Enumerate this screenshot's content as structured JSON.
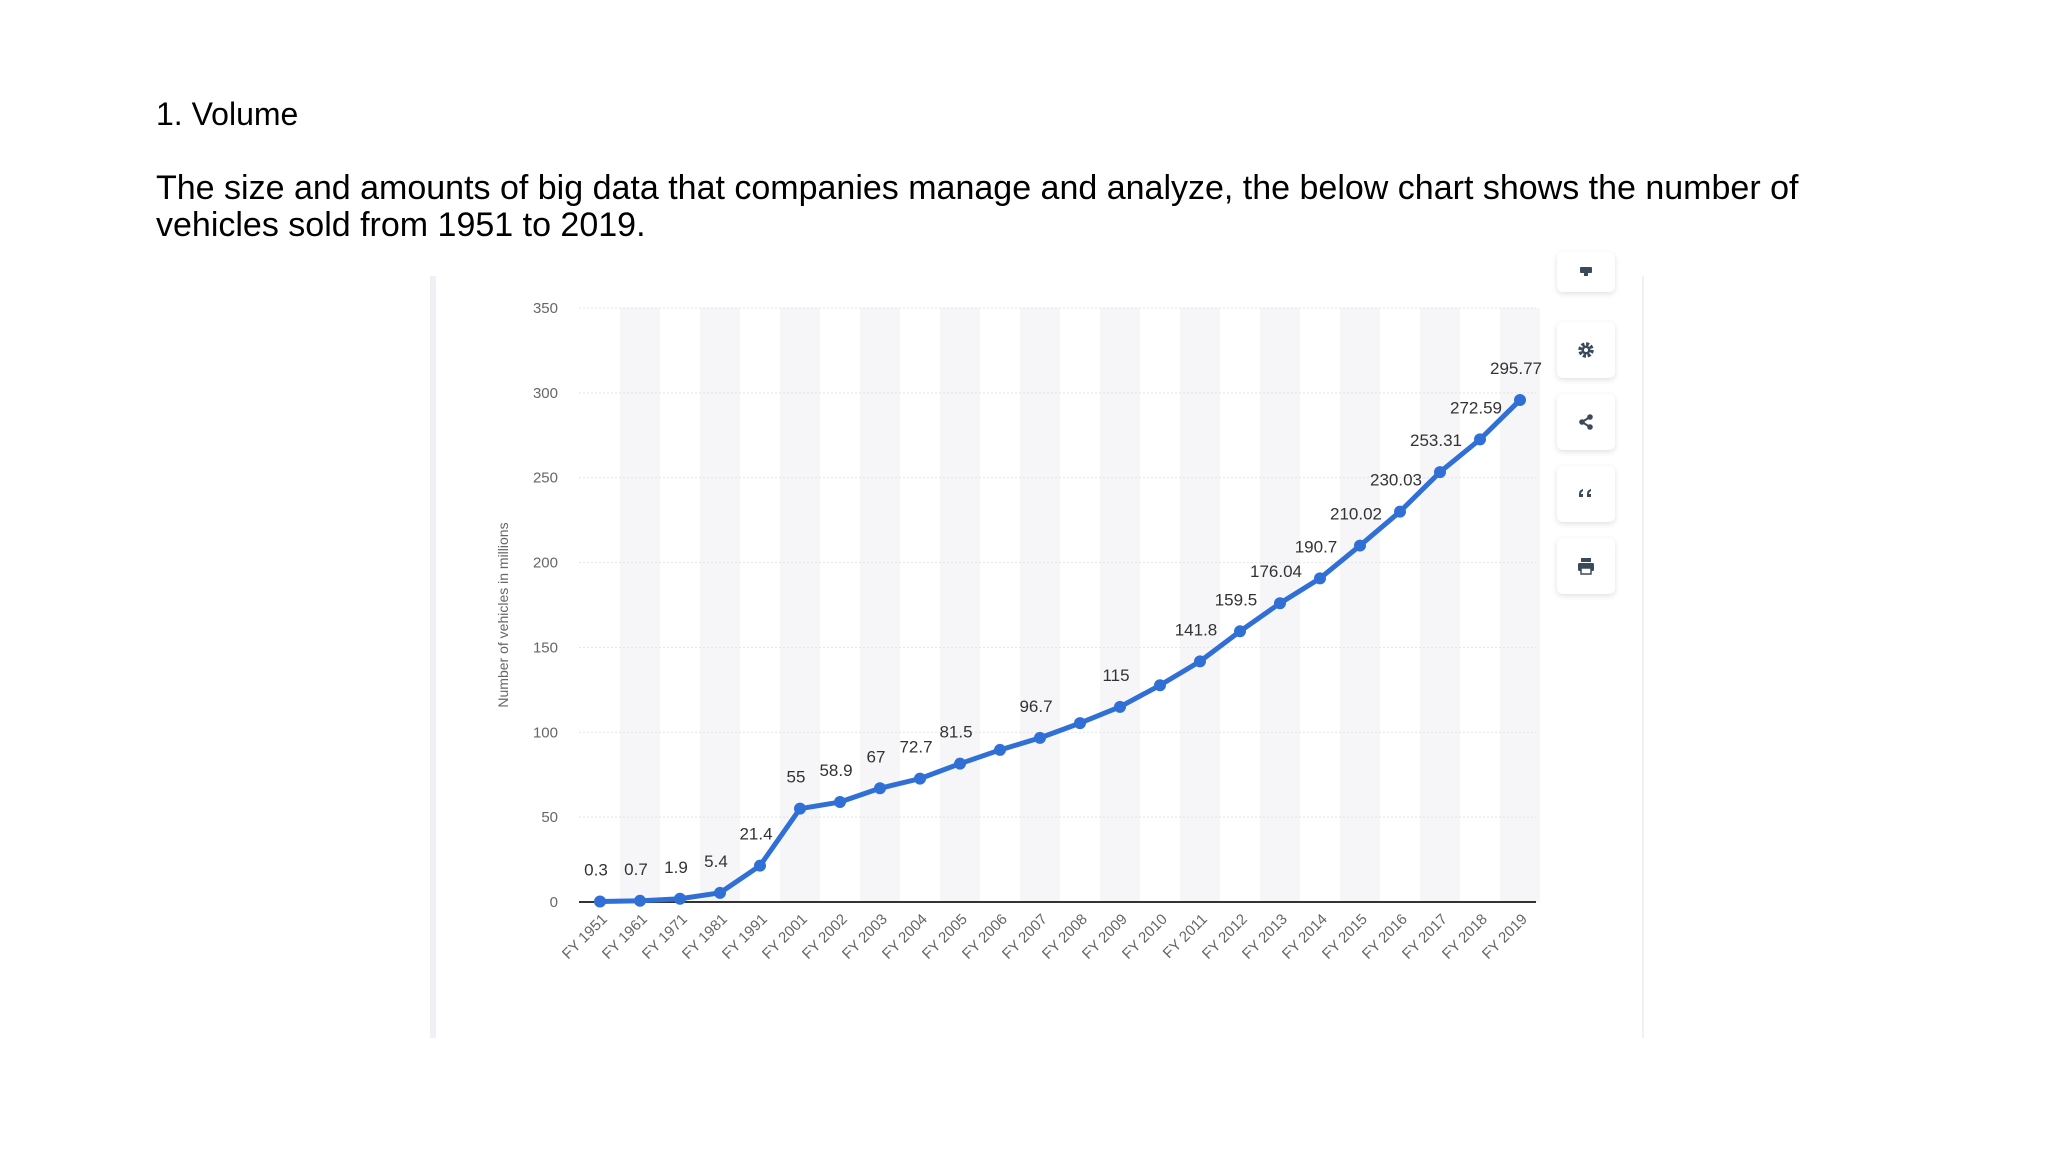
{
  "slide": {
    "heading": "1. Volume",
    "description": "The size and amounts of big data that companies manage and analyze, the below chart shows the number of vehicles sold from 1951 to 2019."
  },
  "toolbar": {
    "icons": [
      "notification-icon",
      "gear-icon",
      "share-icon",
      "quote-icon",
      "print-icon"
    ]
  },
  "colors": {
    "line": "#2f6fd6",
    "grid": "#e3e3e3",
    "band": "#f6f6f8",
    "tick_text": "#666666",
    "label_text": "#333333"
  },
  "chart_data": {
    "type": "line",
    "ylabel": "Number of vehicles in millions",
    "ylim": [
      0,
      350
    ],
    "yticks": [
      0,
      50,
      100,
      150,
      200,
      250,
      300,
      350
    ],
    "categories": [
      "FY 1951",
      "FY 1961",
      "FY 1971",
      "FY 1981",
      "FY 1991",
      "FY 2001",
      "FY 2002",
      "FY 2003",
      "FY 2004",
      "FY 2005",
      "FY 2006",
      "FY 2007",
      "FY 2008",
      "FY 2009",
      "FY 2010",
      "FY 2011",
      "FY 2012",
      "FY 2013",
      "FY 2014",
      "FY 2015",
      "FY 2016",
      "FY 2017",
      "FY 2018",
      "FY 2019"
    ],
    "series": [
      {
        "values": [
          0.3,
          0.7,
          1.9,
          5.4,
          21.4,
          55,
          58.9,
          67,
          72.7,
          81.5,
          89.6,
          96.7,
          105.4,
          115,
          127.7,
          141.8,
          159.5,
          176.04,
          190.7,
          210.02,
          230.03,
          253.31,
          272.59,
          295.77
        ],
        "labels": [
          "0.3",
          "0.7",
          "1.9",
          "5.4",
          "21.4",
          "55",
          "58.9",
          "67",
          "72.7",
          "81.5",
          "",
          "96.7",
          "",
          "115",
          "",
          "141.8",
          "159.5",
          "176.04",
          "190.7",
          "210.02",
          "230.03",
          "253.31",
          "272.59",
          "295.77"
        ]
      }
    ],
    "grid": true,
    "legend": "none"
  }
}
